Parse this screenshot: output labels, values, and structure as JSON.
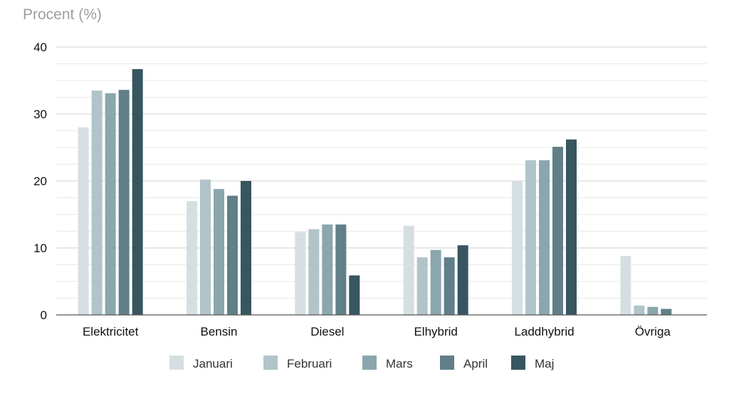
{
  "chart_data": {
    "type": "bar",
    "ylabel": "Procent (%)",
    "ylim": [
      0,
      40
    ],
    "yticks": [
      0,
      10,
      20,
      30,
      40
    ],
    "grid": true,
    "legend_position": "bottom",
    "categories": [
      "Elektricitet",
      "Bensin",
      "Diesel",
      "Elhybrid",
      "Laddhybrid",
      "Övriga"
    ],
    "series": [
      {
        "name": "Januari",
        "color": "#d5dfe1",
        "values": [
          28.0,
          17.0,
          12.4,
          13.3,
          20.0,
          8.8
        ]
      },
      {
        "name": "Februari",
        "color": "#b0c4c9",
        "values": [
          33.5,
          20.2,
          12.8,
          8.6,
          23.1,
          1.4
        ]
      },
      {
        "name": "Mars",
        "color": "#8ba6ad",
        "values": [
          33.1,
          18.8,
          13.5,
          9.7,
          23.1,
          1.2
        ]
      },
      {
        "name": "April",
        "color": "#607f88",
        "values": [
          33.6,
          17.8,
          13.5,
          8.6,
          25.1,
          0.9
        ]
      },
      {
        "name": "Maj",
        "color": "#375660",
        "values": [
          36.7,
          20.0,
          5.9,
          10.4,
          26.2,
          0.0
        ]
      }
    ]
  }
}
